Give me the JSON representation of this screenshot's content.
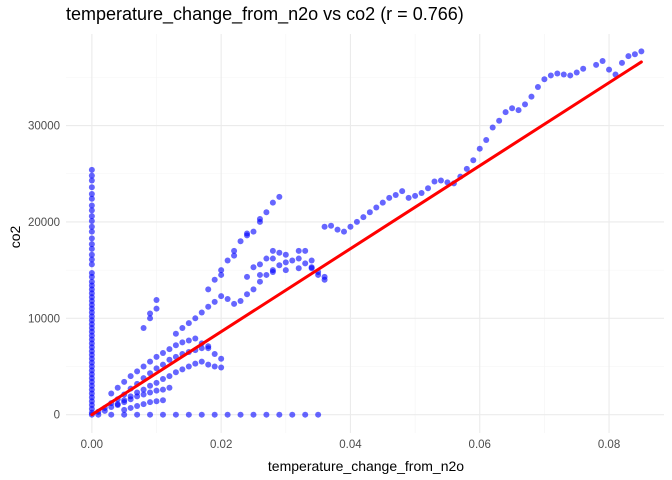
{
  "chart_data": {
    "type": "scatter",
    "title": "temperature_change_from_n2o vs co2 (r = 0.766)",
    "xlabel": "temperature_change_from_n2o",
    "ylabel": "co2",
    "xlim": [
      -0.004,
      0.0885
    ],
    "ylim": [
      -1900,
      39500
    ],
    "x_ticks": [
      0.0,
      0.02,
      0.04,
      0.06,
      0.08
    ],
    "x_tick_labels": [
      "0.00",
      "0.02",
      "0.04",
      "0.06",
      "0.08"
    ],
    "y_ticks": [
      0,
      10000,
      20000,
      30000
    ],
    "y_tick_labels": [
      "0",
      "10000",
      "20000",
      "30000"
    ],
    "grid": true,
    "point_color": "#0000ff",
    "trend_color": "#ff0000",
    "trend_line": {
      "x": [
        0.0,
        0.085
      ],
      "y": [
        0,
        36600
      ]
    },
    "series": [
      {
        "points": [
          [
            0,
            25400
          ],
          [
            0,
            24800
          ],
          [
            0,
            24300
          ],
          [
            0,
            23600
          ],
          [
            0,
            22900
          ],
          [
            0,
            22400
          ],
          [
            0,
            21700
          ],
          [
            0,
            21200
          ],
          [
            0,
            20600
          ],
          [
            0,
            20100
          ],
          [
            0,
            19500
          ],
          [
            0,
            19000
          ],
          [
            0,
            18300
          ],
          [
            0,
            17700
          ],
          [
            0,
            17200
          ],
          [
            0,
            16600
          ],
          [
            0,
            16100
          ],
          [
            0,
            15600
          ],
          [
            0,
            14700
          ],
          [
            0,
            14300
          ],
          [
            0,
            13800
          ],
          [
            0,
            13400
          ],
          [
            0,
            13000
          ],
          [
            0,
            12600
          ],
          [
            0,
            12200
          ],
          [
            0,
            11800
          ],
          [
            0,
            11400
          ],
          [
            0,
            11000
          ],
          [
            0,
            10600
          ],
          [
            0,
            10200
          ],
          [
            0,
            9800
          ],
          [
            0,
            9400
          ],
          [
            0,
            9000
          ],
          [
            0,
            8600
          ],
          [
            0,
            8200
          ],
          [
            0,
            7800
          ],
          [
            0,
            7400
          ],
          [
            0,
            7000
          ],
          [
            0,
            6600
          ],
          [
            0,
            6200
          ],
          [
            0,
            5800
          ],
          [
            0,
            5400
          ],
          [
            0,
            5000
          ],
          [
            0,
            4600
          ],
          [
            0,
            4200
          ],
          [
            0,
            3800
          ],
          [
            0,
            3400
          ],
          [
            0,
            3000
          ],
          [
            0,
            2600
          ],
          [
            0,
            2200
          ],
          [
            0,
            1800
          ],
          [
            0,
            1400
          ],
          [
            0,
            1000
          ],
          [
            0,
            600
          ],
          [
            0,
            200
          ],
          [
            0,
            0
          ],
          [
            0.001,
            0
          ],
          [
            0.003,
            0
          ],
          [
            0.005,
            0
          ],
          [
            0.007,
            0
          ],
          [
            0.009,
            0
          ],
          [
            0.011,
            0
          ],
          [
            0.013,
            0
          ],
          [
            0.015,
            0
          ],
          [
            0.017,
            0
          ],
          [
            0.019,
            0
          ],
          [
            0.021,
            0
          ],
          [
            0.023,
            0
          ],
          [
            0.025,
            0
          ],
          [
            0.027,
            0
          ],
          [
            0.029,
            0
          ],
          [
            0.031,
            0
          ],
          [
            0.033,
            0
          ],
          [
            0.035,
            0
          ],
          [
            0.001,
            300
          ],
          [
            0.002,
            700
          ],
          [
            0.003,
            1200
          ],
          [
            0.004,
            1600
          ],
          [
            0.005,
            2100
          ],
          [
            0.006,
            2700
          ],
          [
            0.007,
            3200
          ],
          [
            0.008,
            3800
          ],
          [
            0.009,
            4300
          ],
          [
            0.01,
            4800
          ],
          [
            0.011,
            5200
          ],
          [
            0.012,
            5700
          ],
          [
            0.013,
            6000
          ],
          [
            0.014,
            6300
          ],
          [
            0.015,
            6500
          ],
          [
            0.016,
            6700
          ],
          [
            0.017,
            6900
          ],
          [
            0.018,
            7100
          ],
          [
            0.002,
            400
          ],
          [
            0.003,
            800
          ],
          [
            0.004,
            1100
          ],
          [
            0.005,
            1500
          ],
          [
            0.006,
            1900
          ],
          [
            0.007,
            2300
          ],
          [
            0.008,
            2600
          ],
          [
            0.009,
            3000
          ],
          [
            0.01,
            3300
          ],
          [
            0.011,
            3700
          ],
          [
            0.012,
            4000
          ],
          [
            0.013,
            4400
          ],
          [
            0.014,
            4700
          ],
          [
            0.015,
            5000
          ],
          [
            0.016,
            5300
          ],
          [
            0.017,
            5500
          ],
          [
            0.018,
            5200
          ],
          [
            0.019,
            5000
          ],
          [
            0.02,
            4900
          ],
          [
            0.003,
            2200
          ],
          [
            0.004,
            2800
          ],
          [
            0.005,
            3400
          ],
          [
            0.006,
            4000
          ],
          [
            0.007,
            4500
          ],
          [
            0.008,
            5000
          ],
          [
            0.009,
            5500
          ],
          [
            0.01,
            6000
          ],
          [
            0.011,
            6400
          ],
          [
            0.012,
            6800
          ],
          [
            0.013,
            7200
          ],
          [
            0.014,
            7500
          ],
          [
            0.015,
            7700
          ],
          [
            0.016,
            7900
          ],
          [
            0.017,
            7400
          ],
          [
            0.018,
            6900
          ],
          [
            0.019,
            6300
          ],
          [
            0.02,
            5800
          ],
          [
            0.004,
            1000
          ],
          [
            0.005,
            1300
          ],
          [
            0.006,
            1600
          ],
          [
            0.007,
            1900
          ],
          [
            0.008,
            2100
          ],
          [
            0.009,
            2300
          ],
          [
            0.01,
            2500
          ],
          [
            0.011,
            2600
          ],
          [
            0.012,
            2800
          ],
          [
            0.005,
            500
          ],
          [
            0.006,
            700
          ],
          [
            0.007,
            900
          ],
          [
            0.008,
            1100
          ],
          [
            0.009,
            1300
          ],
          [
            0.01,
            1400
          ],
          [
            0.011,
            1500
          ],
          [
            0.008,
            9000
          ],
          [
            0.009,
            10000
          ],
          [
            0.01,
            11000
          ],
          [
            0.01,
            11900
          ],
          [
            0.009,
            10500
          ],
          [
            0.013,
            8400
          ],
          [
            0.014,
            9000
          ],
          [
            0.015,
            9500
          ],
          [
            0.016,
            10000
          ],
          [
            0.017,
            10600
          ],
          [
            0.018,
            11200
          ],
          [
            0.019,
            11700
          ],
          [
            0.02,
            12300
          ],
          [
            0.021,
            12000
          ],
          [
            0.022,
            11500
          ],
          [
            0.023,
            11800
          ],
          [
            0.024,
            12500
          ],
          [
            0.025,
            13000
          ],
          [
            0.026,
            13800
          ],
          [
            0.027,
            14500
          ],
          [
            0.028,
            15000
          ],
          [
            0.029,
            15500
          ],
          [
            0.03,
            15800
          ],
          [
            0.031,
            16000
          ],
          [
            0.032,
            16200
          ],
          [
            0.033,
            15700
          ],
          [
            0.034,
            15200
          ],
          [
            0.035,
            14800
          ],
          [
            0.036,
            14300
          ],
          [
            0.018,
            13000
          ],
          [
            0.019,
            14000
          ],
          [
            0.02,
            15000
          ],
          [
            0.021,
            16000
          ],
          [
            0.022,
            17000
          ],
          [
            0.023,
            18000
          ],
          [
            0.024,
            18600
          ],
          [
            0.025,
            19000
          ],
          [
            0.026,
            20000
          ],
          [
            0.027,
            21000
          ],
          [
            0.028,
            22000
          ],
          [
            0.029,
            22600
          ],
          [
            0.026,
            20300
          ],
          [
            0.024,
            18800
          ],
          [
            0.022,
            16500
          ],
          [
            0.02,
            14500
          ],
          [
            0.024,
            14300
          ],
          [
            0.026,
            14500
          ],
          [
            0.028,
            14800
          ],
          [
            0.03,
            15000
          ],
          [
            0.032,
            15200
          ],
          [
            0.034,
            15300
          ],
          [
            0.035,
            14500
          ],
          [
            0.036,
            14000
          ],
          [
            0.028,
            16200
          ],
          [
            0.03,
            16600
          ],
          [
            0.032,
            17000
          ],
          [
            0.033,
            17000
          ],
          [
            0.034,
            16000
          ],
          [
            0.025,
            15300
          ],
          [
            0.026,
            15600
          ],
          [
            0.027,
            16200
          ],
          [
            0.028,
            17000
          ],
          [
            0.029,
            16800
          ],
          [
            0.036,
            19500
          ],
          [
            0.037,
            19600
          ],
          [
            0.038,
            19200
          ],
          [
            0.039,
            19000
          ],
          [
            0.04,
            19500
          ],
          [
            0.041,
            20000
          ],
          [
            0.042,
            20500
          ],
          [
            0.043,
            21000
          ],
          [
            0.044,
            21500
          ],
          [
            0.045,
            22000
          ],
          [
            0.046,
            22500
          ],
          [
            0.047,
            22800
          ],
          [
            0.048,
            23200
          ],
          [
            0.049,
            22500
          ],
          [
            0.05,
            22700
          ],
          [
            0.051,
            23000
          ],
          [
            0.052,
            23500
          ],
          [
            0.053,
            24200
          ],
          [
            0.054,
            24300
          ],
          [
            0.055,
            24100
          ],
          [
            0.056,
            24000
          ],
          [
            0.057,
            24700
          ],
          [
            0.058,
            25500
          ],
          [
            0.059,
            26400
          ],
          [
            0.06,
            27600
          ],
          [
            0.061,
            28500
          ],
          [
            0.062,
            29800
          ],
          [
            0.063,
            30500
          ],
          [
            0.064,
            31400
          ],
          [
            0.065,
            31800
          ],
          [
            0.066,
            31600
          ],
          [
            0.067,
            32200
          ],
          [
            0.068,
            33000
          ],
          [
            0.069,
            34000
          ],
          [
            0.07,
            34800
          ],
          [
            0.071,
            35200
          ],
          [
            0.072,
            35400
          ],
          [
            0.073,
            35300
          ],
          [
            0.074,
            35200
          ],
          [
            0.075,
            35500
          ],
          [
            0.076,
            35900
          ],
          [
            0.078,
            36300
          ],
          [
            0.079,
            36700
          ],
          [
            0.08,
            35800
          ],
          [
            0.081,
            35300
          ],
          [
            0.082,
            36500
          ],
          [
            0.083,
            37200
          ],
          [
            0.084,
            37400
          ],
          [
            0.085,
            37700
          ]
        ]
      }
    ]
  }
}
